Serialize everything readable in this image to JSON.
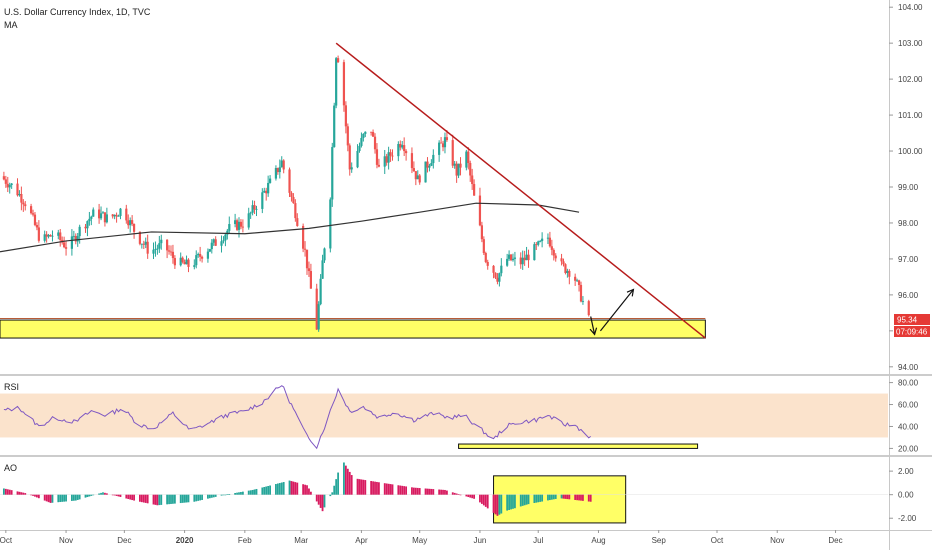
{
  "header": {
    "symbol_line": "U.S. Dollar Currency Index, 1D, TVC",
    "indicator_label": "MA"
  },
  "panes": {
    "rsi_label": "RSI",
    "ao_label": "AO"
  },
  "price_tags": {
    "last_price": "95.34",
    "countdown": "07:09:46"
  },
  "colors": {
    "up": "#26a69a",
    "down": "#ef5350",
    "trendline": "#b71c1c",
    "zone_fill": "#ffff66",
    "ma": "#333333",
    "rsi_line": "#7e57c2",
    "rsi_band": "#fbe3cc",
    "price_tag": "#e53935"
  },
  "chart_data": [
    {
      "type": "candlestick",
      "title": "U.S. Dollar Currency Index, 1D, TVC",
      "x_ticks": [
        "Oct",
        "Nov",
        "Dec",
        "2020",
        "Feb",
        "Mar",
        "Apr",
        "May",
        "Jun",
        "Jul",
        "Aug",
        "Sep",
        "Oct",
        "Nov",
        "Dec"
      ],
      "y_ticks": [
        94,
        95,
        96,
        97,
        98,
        99,
        100,
        101,
        102,
        103,
        104
      ],
      "y_tick_labels": [
        "94.00",
        "95.00",
        "96.00",
        "97.00",
        "98.00",
        "99.00",
        "100.00",
        "101.00",
        "102.00",
        "103.00",
        "104.00"
      ],
      "ylim": [
        93.8,
        104.2
      ],
      "close_path": [
        [
          "2019-09-28",
          99.3
        ],
        [
          "2019-10-05",
          99.0
        ],
        [
          "2019-10-12",
          98.5
        ],
        [
          "2019-10-19",
          97.5
        ],
        [
          "2019-10-26",
          97.7
        ],
        [
          "2019-11-02",
          97.3
        ],
        [
          "2019-11-09",
          97.9
        ],
        [
          "2019-11-16",
          98.3
        ],
        [
          "2019-11-23",
          98.1
        ],
        [
          "2019-11-30",
          98.4
        ],
        [
          "2019-12-07",
          97.7
        ],
        [
          "2019-12-14",
          97.2
        ],
        [
          "2019-12-21",
          97.4
        ],
        [
          "2019-12-28",
          96.9
        ],
        [
          "2020-01-04",
          96.8
        ],
        [
          "2020-01-11",
          97.2
        ],
        [
          "2020-01-18",
          97.5
        ],
        [
          "2020-01-25",
          97.9
        ],
        [
          "2020-02-01",
          98.0
        ],
        [
          "2020-02-08",
          98.6
        ],
        [
          "2020-02-15",
          99.2
        ],
        [
          "2020-02-20",
          99.7
        ],
        [
          "2020-02-27",
          98.3
        ],
        [
          "2020-03-03",
          97.2
        ],
        [
          "2020-03-09",
          95.1
        ],
        [
          "2020-03-12",
          96.9
        ],
        [
          "2020-03-16",
          98.8
        ],
        [
          "2020-03-19",
          102.7
        ],
        [
          "2020-03-21",
          102.5
        ],
        [
          "2020-03-26",
          99.5
        ],
        [
          "2020-04-02",
          100.4
        ],
        [
          "2020-04-06",
          100.6
        ],
        [
          "2020-04-10",
          99.5
        ],
        [
          "2020-04-16",
          99.9
        ],
        [
          "2020-04-22",
          100.3
        ],
        [
          "2020-04-30",
          99.2
        ],
        [
          "2020-05-07",
          99.8
        ],
        [
          "2020-05-14",
          100.3
        ],
        [
          "2020-05-20",
          99.4
        ],
        [
          "2020-05-25",
          99.9
        ],
        [
          "2020-05-30",
          98.4
        ],
        [
          "2020-06-04",
          97.0
        ],
        [
          "2020-06-10",
          96.5
        ],
        [
          "2020-06-15",
          97.0
        ],
        [
          "2020-06-22",
          96.9
        ],
        [
          "2020-06-28",
          97.2
        ],
        [
          "2020-07-06",
          97.6
        ],
        [
          "2020-07-13",
          96.8
        ],
        [
          "2020-07-19",
          96.6
        ],
        [
          "2020-07-24",
          95.8
        ],
        [
          "2020-07-27",
          95.3
        ]
      ],
      "moving_average": [
        [
          "2019-09-28",
          97.2
        ],
        [
          "2019-11-01",
          97.5
        ],
        [
          "2019-12-15",
          97.75
        ],
        [
          "2020-02-01",
          97.7
        ],
        [
          "2020-03-05",
          97.85
        ],
        [
          "2020-04-01",
          98.05
        ],
        [
          "2020-05-01",
          98.3
        ],
        [
          "2020-05-30",
          98.55
        ],
        [
          "2020-07-01",
          98.5
        ],
        [
          "2020-07-22",
          98.3
        ]
      ],
      "trendline": [
        [
          "2020-03-19",
          103.0
        ],
        [
          "2020-09-25",
          94.8
        ]
      ],
      "support_zone": {
        "from": "2019-09-28",
        "to": "2020-09-25",
        "low": 94.8,
        "high": 95.3
      },
      "projection_arrows": [
        {
          "direction": "down",
          "from": [
            "2020-07-28",
            95.4
          ],
          "to": [
            "2020-07-30",
            94.9
          ]
        },
        {
          "direction": "up",
          "from": [
            "2020-08-02",
            95.0
          ],
          "to": [
            "2020-08-19",
            96.15
          ]
        }
      ],
      "last_price": 95.34
    },
    {
      "type": "line",
      "name": "RSI",
      "y_ticks": [
        20,
        40,
        60,
        80
      ],
      "y_tick_labels": [
        "20.00",
        "40.00",
        "60.00",
        "80.00"
      ],
      "ylim": [
        14,
        86
      ],
      "band": [
        30,
        70
      ],
      "series": [
        [
          "2019-09-28",
          54
        ],
        [
          "2019-10-08",
          57
        ],
        [
          "2019-10-18",
          40
        ],
        [
          "2019-10-26",
          48
        ],
        [
          "2019-11-06",
          44
        ],
        [
          "2019-11-14",
          54
        ],
        [
          "2019-11-22",
          50
        ],
        [
          "2019-11-30",
          57
        ],
        [
          "2019-12-08",
          42
        ],
        [
          "2019-12-16",
          38
        ],
        [
          "2019-12-26",
          52
        ],
        [
          "2020-01-04",
          36
        ],
        [
          "2020-01-12",
          42
        ],
        [
          "2020-01-22",
          50
        ],
        [
          "2020-02-01",
          54
        ],
        [
          "2020-02-10",
          62
        ],
        [
          "2020-02-20",
          78
        ],
        [
          "2020-02-26",
          56
        ],
        [
          "2020-03-03",
          34
        ],
        [
          "2020-03-09",
          22
        ],
        [
          "2020-03-14",
          44
        ],
        [
          "2020-03-20",
          74
        ],
        [
          "2020-03-26",
          54
        ],
        [
          "2020-04-02",
          58
        ],
        [
          "2020-04-10",
          48
        ],
        [
          "2020-04-18",
          53
        ],
        [
          "2020-04-28",
          46
        ],
        [
          "2020-05-08",
          52
        ],
        [
          "2020-05-16",
          48
        ],
        [
          "2020-05-24",
          50
        ],
        [
          "2020-06-01",
          38
        ],
        [
          "2020-06-08",
          28
        ],
        [
          "2020-06-14",
          40
        ],
        [
          "2020-06-22",
          44
        ],
        [
          "2020-06-30",
          46
        ],
        [
          "2020-07-06",
          50
        ],
        [
          "2020-07-14",
          42
        ],
        [
          "2020-07-20",
          41
        ],
        [
          "2020-07-28",
          30
        ]
      ],
      "highlight_box": {
        "from": "2020-05-21",
        "to": "2020-09-21",
        "low": 20,
        "high": 24
      }
    },
    {
      "type": "bar",
      "name": "AO",
      "y_ticks": [
        -2,
        0,
        2
      ],
      "y_tick_labels": [
        "-2.00",
        "0.00",
        "2.00"
      ],
      "ylim": [
        -3.0,
        3.2
      ],
      "path": [
        [
          "2019-09-28",
          0.6
        ],
        [
          "2019-10-12",
          0.1
        ],
        [
          "2019-10-24",
          -0.7
        ],
        [
          "2019-11-06",
          -0.5
        ],
        [
          "2019-11-20",
          0.2
        ],
        [
          "2019-12-06",
          -0.5
        ],
        [
          "2019-12-18",
          -0.9
        ],
        [
          "2020-01-06",
          -0.6
        ],
        [
          "2020-01-22",
          0.0
        ],
        [
          "2020-02-05",
          0.4
        ],
        [
          "2020-02-24",
          1.2
        ],
        [
          "2020-03-04",
          0.8
        ],
        [
          "2020-03-12",
          -1.4
        ],
        [
          "2020-03-17",
          0.2
        ],
        [
          "2020-03-22",
          3.0
        ],
        [
          "2020-03-28",
          1.4
        ],
        [
          "2020-04-12",
          1.0
        ],
        [
          "2020-04-28",
          0.6
        ],
        [
          "2020-05-14",
          0.4
        ],
        [
          "2020-05-30",
          -0.4
        ],
        [
          "2020-06-10",
          -1.8
        ],
        [
          "2020-06-14",
          -1.4
        ],
        [
          "2020-06-26",
          -0.8
        ],
        [
          "2020-07-12",
          -0.3
        ],
        [
          "2020-07-28",
          -0.6
        ]
      ],
      "highlight_box": {
        "from": "2020-06-08",
        "to": "2020-08-15",
        "low": -2.4,
        "high": 1.6
      }
    }
  ]
}
